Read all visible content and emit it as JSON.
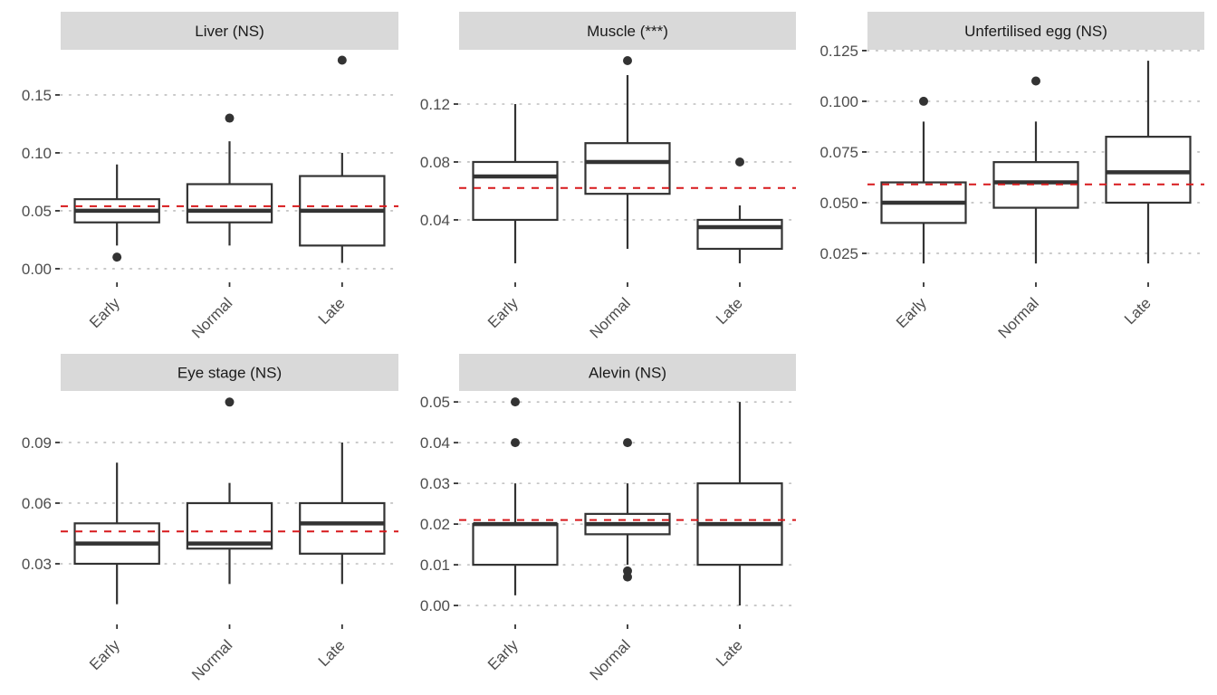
{
  "chart_data": [
    {
      "type": "box",
      "title": "Liver (NS)",
      "categories": [
        "Early",
        "Normal",
        "Late"
      ],
      "yticks": [
        "0.00",
        "0.05",
        "0.10",
        "0.15"
      ],
      "ytick_values": [
        0.0,
        0.05,
        0.1,
        0.15
      ],
      "ylim": [
        -0.0102,
        0.189
      ],
      "reference_line": 0.054,
      "boxes": [
        {
          "category": "Early",
          "whisker_low": 0.02,
          "q1": 0.04,
          "median": 0.05,
          "q3": 0.06,
          "whisker_high": 0.09,
          "outliers": [
            0.01
          ]
        },
        {
          "category": "Normal",
          "whisker_low": 0.02,
          "q1": 0.04,
          "median": 0.05,
          "q3": 0.073,
          "whisker_high": 0.11,
          "outliers": [
            0.13
          ]
        },
        {
          "category": "Late",
          "whisker_low": 0.005,
          "q1": 0.02,
          "median": 0.05,
          "q3": 0.08,
          "whisker_high": 0.1,
          "outliers": [
            0.18
          ]
        }
      ]
    },
    {
      "type": "box",
      "title": "Muscle (***)",
      "categories": [
        "Early",
        "Normal",
        "Late"
      ],
      "yticks": [
        "0.04",
        "0.08",
        "0.12"
      ],
      "ytick_values": [
        0.04,
        0.08,
        0.12
      ],
      "ylim": [
        -0.0019,
        0.1575
      ],
      "reference_line": 0.062,
      "boxes": [
        {
          "category": "Early",
          "whisker_low": 0.01,
          "q1": 0.04,
          "median": 0.07,
          "q3": 0.08,
          "whisker_high": 0.12,
          "outliers": []
        },
        {
          "category": "Normal",
          "whisker_low": 0.02,
          "q1": 0.058,
          "median": 0.08,
          "q3": 0.093,
          "whisker_high": 0.14,
          "outliers": [
            0.15
          ]
        },
        {
          "category": "Late",
          "whisker_low": 0.01,
          "q1": 0.02,
          "median": 0.035,
          "q3": 0.04,
          "whisker_high": 0.05,
          "outliers": [
            0.08
          ]
        }
      ]
    },
    {
      "type": "box",
      "title": "Unfertilised egg (NS)",
      "categories": [
        "Early",
        "Normal",
        "Late"
      ],
      "yticks": [
        "0.025",
        "0.050",
        "0.075",
        "0.100",
        "0.125"
      ],
      "ytick_values": [
        0.025,
        0.05,
        0.075,
        0.1,
        0.125
      ],
      "ylim": [
        0.0116,
        0.1254
      ],
      "reference_line": 0.059,
      "boxes": [
        {
          "category": "Early",
          "whisker_low": 0.02,
          "q1": 0.04,
          "median": 0.05,
          "q3": 0.06,
          "whisker_high": 0.09,
          "outliers": [
            0.1
          ]
        },
        {
          "category": "Normal",
          "whisker_low": 0.02,
          "q1": 0.0475,
          "median": 0.06,
          "q3": 0.07,
          "whisker_high": 0.09,
          "outliers": [
            0.11
          ]
        },
        {
          "category": "Late",
          "whisker_low": 0.02,
          "q1": 0.05,
          "median": 0.065,
          "q3": 0.0825,
          "whisker_high": 0.12,
          "outliers": []
        }
      ]
    },
    {
      "type": "box",
      "title": "Eye stage (NS)",
      "categories": [
        "Early",
        "Normal",
        "Late"
      ],
      "yticks": [
        "0.03",
        "0.06",
        "0.09"
      ],
      "ytick_values": [
        0.03,
        0.06,
        0.09
      ],
      "ylim": [
        0.0009,
        0.1155
      ],
      "reference_line": 0.046,
      "boxes": [
        {
          "category": "Early",
          "whisker_low": 0.01,
          "q1": 0.03,
          "median": 0.04,
          "q3": 0.05,
          "whisker_high": 0.08,
          "outliers": []
        },
        {
          "category": "Normal",
          "whisker_low": 0.02,
          "q1": 0.0375,
          "median": 0.04,
          "q3": 0.06,
          "whisker_high": 0.07,
          "outliers": [
            0.11
          ]
        },
        {
          "category": "Late",
          "whisker_low": 0.02,
          "q1": 0.035,
          "median": 0.05,
          "q3": 0.06,
          "whisker_high": 0.09,
          "outliers": []
        }
      ]
    },
    {
      "type": "box",
      "title": "Alevin (NS)",
      "categories": [
        "Early",
        "Normal",
        "Late"
      ],
      "yticks": [
        "0.00",
        "0.01",
        "0.02",
        "0.03",
        "0.04",
        "0.05"
      ],
      "ytick_values": [
        0.0,
        0.01,
        0.02,
        0.03,
        0.04,
        0.05
      ],
      "ylim": [
        -0.0042,
        0.0527
      ],
      "reference_line": 0.021,
      "boxes": [
        {
          "category": "Early",
          "whisker_low": 0.0025,
          "q1": 0.01,
          "median": 0.02,
          "q3": 0.02,
          "whisker_high": 0.03,
          "outliers": [
            0.04,
            0.05
          ]
        },
        {
          "category": "Normal",
          "whisker_low": 0.01,
          "q1": 0.0175,
          "median": 0.02,
          "q3": 0.0225,
          "whisker_high": 0.03,
          "outliers": [
            0.04,
            0.0085,
            0.007
          ]
        },
        {
          "category": "Late",
          "whisker_low": 0.0,
          "q1": 0.01,
          "median": 0.02,
          "q3": 0.03,
          "whisker_high": 0.05,
          "outliers": []
        }
      ]
    }
  ],
  "colors": {
    "strip_background": "#d9d9d9",
    "box_line": "#333333",
    "reference_line": "#d7191c",
    "grid": "#bdbdbd",
    "tick_text": "#4d4d4d"
  }
}
